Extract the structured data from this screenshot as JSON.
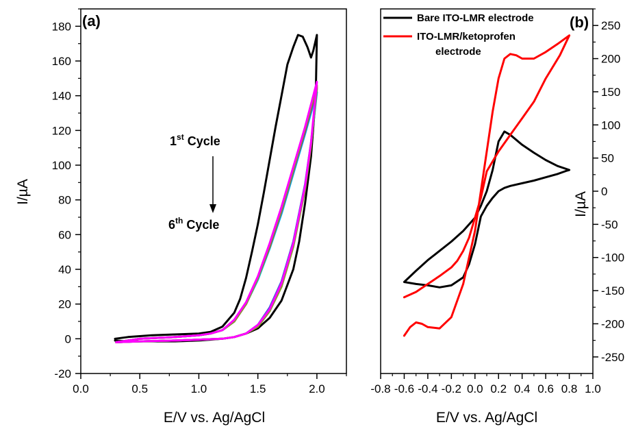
{
  "figure": {
    "panels": [
      {
        "label": "(a)"
      },
      {
        "label": "(b)"
      }
    ]
  },
  "chart_data": [
    {
      "type": "line",
      "panel": "(a)",
      "xlabel": "E/V vs. Ag/AgCl",
      "ylabel": "I/µA",
      "xlim": [
        0.0,
        2.25
      ],
      "ylim": [
        -20,
        190
      ],
      "xticks": [
        0.0,
        0.5,
        1.0,
        1.5,
        2.0
      ],
      "yticks": [
        -20,
        0,
        20,
        40,
        60,
        80,
        100,
        120,
        140,
        160,
        180
      ],
      "xtick_labels": [
        "0.0",
        "0.5",
        "1.0",
        "1.5",
        "2.0"
      ],
      "ytick_labels": [
        "-20",
        "0",
        "20",
        "40",
        "60",
        "80",
        "100",
        "120",
        "140",
        "160",
        "180"
      ],
      "annotation_top": {
        "num": "1",
        "sup": "st",
        "text": " Cycle"
      },
      "annotation_bottom": {
        "num": "6",
        "sup": "th",
        "text": " Cycle"
      },
      "series": [
        {
          "color": "#000000",
          "x": [
            0.29,
            0.4,
            0.6,
            0.8,
            1.0,
            1.1,
            1.2,
            1.3,
            1.35,
            1.4,
            1.45,
            1.5,
            1.55,
            1.6,
            1.65,
            1.7,
            1.75,
            1.8,
            1.84,
            1.88,
            1.92,
            1.95,
            1.97,
            2.0,
            1.99,
            1.95,
            1.9,
            1.85,
            1.8,
            1.7,
            1.6,
            1.5,
            1.4,
            1.3,
            1.2,
            1.1,
            1.0,
            0.8,
            0.6,
            0.4,
            0.29
          ],
          "y": [
            0,
            1,
            2,
            2.5,
            3,
            4,
            7,
            15,
            23,
            35,
            50,
            66,
            84,
            103,
            122,
            140,
            158,
            168,
            175,
            174,
            168,
            162,
            166,
            175,
            140,
            105,
            78,
            56,
            40,
            22,
            12,
            6,
            3,
            1,
            0,
            -0.5,
            -1,
            -1.5,
            -1.5,
            -1.5,
            -1
          ]
        },
        {
          "color": "#00c8e6",
          "x": [
            0.3,
            0.5,
            0.8,
            1.0,
            1.1,
            1.2,
            1.3,
            1.4,
            1.5,
            1.6,
            1.7,
            1.8,
            1.9,
            2.0,
            1.95,
            1.9,
            1.8,
            1.7,
            1.6,
            1.5,
            1.4,
            1.3,
            1.2,
            1.0,
            0.8,
            0.5,
            0.3
          ],
          "y": [
            -2,
            0,
            1,
            2,
            3,
            5,
            10,
            20,
            34,
            52,
            72,
            95,
            118,
            142,
            112,
            88,
            55,
            32,
            17,
            8,
            3,
            1,
            0,
            -0.5,
            -1,
            -1.5,
            -2
          ]
        },
        {
          "color": "#3b5bd6",
          "x": [
            0.3,
            0.5,
            0.8,
            1.0,
            1.1,
            1.2,
            1.3,
            1.4,
            1.5,
            1.6,
            1.7,
            1.8,
            1.9,
            2.0,
            1.95,
            1.9,
            1.8,
            1.7,
            1.6,
            1.5,
            1.4,
            1.3,
            1.2,
            1.0,
            0.8,
            0.5,
            0.3
          ],
          "y": [
            -2,
            0,
            1,
            2,
            3,
            5,
            10,
            20,
            35,
            53,
            73,
            96,
            119,
            144,
            113,
            89,
            56,
            33,
            18,
            8,
            3,
            1,
            0,
            -0.5,
            -1,
            -1.5,
            -2
          ]
        },
        {
          "color": "#a0522d",
          "x": [
            0.3,
            0.5,
            0.8,
            1.0,
            1.1,
            1.2,
            1.3,
            1.4,
            1.5,
            1.6,
            1.7,
            1.8,
            1.9,
            2.0,
            1.95,
            1.9,
            1.8,
            1.7,
            1.6,
            1.5,
            1.4,
            1.3,
            1.2,
            1.0,
            0.8,
            0.5,
            0.3
          ],
          "y": [
            -2,
            0,
            1,
            2,
            3,
            5,
            10,
            20,
            35,
            53,
            74,
            97,
            120,
            145,
            112,
            87,
            54,
            31,
            16,
            7,
            3,
            1,
            0,
            -0.5,
            -1,
            -1.5,
            -2
          ]
        },
        {
          "color": "#8a9a2a",
          "x": [
            0.3,
            0.5,
            0.8,
            1.0,
            1.1,
            1.2,
            1.3,
            1.4,
            1.5,
            1.6,
            1.7,
            1.8,
            1.9,
            2.0,
            1.95,
            1.9,
            1.8,
            1.7,
            1.6,
            1.5,
            1.4,
            1.3,
            1.2,
            1.0,
            0.8,
            0.5,
            0.3
          ],
          "y": [
            -2,
            0,
            1,
            2,
            3,
            5,
            10,
            20,
            35,
            54,
            74,
            97,
            121,
            146,
            111,
            86,
            53,
            30,
            16,
            7,
            3,
            1,
            0,
            -0.5,
            -1,
            -1.5,
            -2
          ]
        },
        {
          "color": "#ff00ff",
          "x": [
            0.3,
            0.5,
            0.8,
            1.0,
            1.1,
            1.2,
            1.3,
            1.4,
            1.5,
            1.6,
            1.7,
            1.8,
            1.9,
            2.0,
            1.95,
            1.9,
            1.8,
            1.7,
            1.6,
            1.5,
            1.4,
            1.3,
            1.2,
            1.0,
            0.8,
            0.5,
            0.3
          ],
          "y": [
            -2,
            0,
            1,
            2,
            3,
            5,
            11,
            21,
            36,
            55,
            76,
            99,
            122,
            148,
            113,
            88,
            55,
            32,
            17,
            8,
            3,
            1,
            0,
            -0.5,
            -1,
            -1.5,
            -2
          ]
        }
      ]
    },
    {
      "type": "line",
      "panel": "(b)",
      "xlabel": "E/V vs. Ag/AgCl",
      "ylabel": "I/µA",
      "xlim": [
        -0.8,
        1.0
      ],
      "ylim": [
        -275,
        275
      ],
      "xticks": [
        -0.8,
        -0.6,
        -0.4,
        -0.2,
        0.0,
        0.2,
        0.4,
        0.6,
        0.8,
        1.0
      ],
      "yticks": [
        -250,
        -200,
        -150,
        -100,
        -50,
        0,
        50,
        100,
        150,
        200,
        250
      ],
      "xtick_labels": [
        "-0.8",
        "-0.6",
        "-0.4",
        "-0.2",
        "0.0",
        "0.2",
        "0.4",
        "0.6",
        "0.8",
        "1.0"
      ],
      "ytick_labels": [
        "-250",
        "-200",
        "-150",
        "-100",
        "-50",
        "0",
        "50",
        "100",
        "150",
        "200",
        "250"
      ],
      "legend": [
        {
          "label": "Bare ITO-LMR electrode",
          "color": "#000000"
        },
        {
          "label": "ITO-LMR/ketoprofen",
          "label2": "electrode",
          "color": "#ff0000"
        }
      ],
      "series": [
        {
          "name": "Bare ITO-LMR electrode",
          "color": "#000000",
          "x": [
            -0.6,
            -0.5,
            -0.4,
            -0.3,
            -0.2,
            -0.1,
            0.0,
            0.05,
            0.1,
            0.15,
            0.2,
            0.25,
            0.3,
            0.4,
            0.5,
            0.6,
            0.7,
            0.8,
            0.78,
            0.7,
            0.6,
            0.5,
            0.4,
            0.3,
            0.25,
            0.2,
            0.15,
            0.1,
            0.05,
            0.0,
            -0.05,
            -0.1,
            -0.2,
            -0.3,
            -0.4,
            -0.5,
            -0.6
          ],
          "y": [
            -137,
            -120,
            -104,
            -90,
            -76,
            -60,
            -40,
            -22,
            0,
            32,
            75,
            90,
            85,
            70,
            58,
            47,
            38,
            32,
            31,
            26,
            21,
            16,
            12,
            8,
            5,
            0,
            -10,
            -22,
            -38,
            -80,
            -110,
            -130,
            -142,
            -145,
            -142,
            -140,
            -137
          ]
        },
        {
          "name": "ITO-LMR/ketoprofen electrode",
          "color": "#ff0000",
          "x": [
            -0.6,
            -0.55,
            -0.5,
            -0.45,
            -0.4,
            -0.3,
            -0.2,
            -0.1,
            0.0,
            0.05,
            0.1,
            0.15,
            0.2,
            0.25,
            0.3,
            0.35,
            0.4,
            0.5,
            0.6,
            0.7,
            0.8,
            0.72,
            0.6,
            0.5,
            0.4,
            0.3,
            0.2,
            0.1,
            0.05,
            0.0,
            -0.05,
            -0.1,
            -0.15,
            -0.2,
            -0.3,
            -0.4,
            -0.5,
            -0.6
          ],
          "y": [
            -218,
            -205,
            -198,
            -200,
            -205,
            -207,
            -190,
            -140,
            -60,
            0,
            60,
            120,
            170,
            200,
            207,
            205,
            200,
            200,
            210,
            222,
            235,
            205,
            170,
            135,
            110,
            85,
            60,
            30,
            -10,
            -40,
            -70,
            -90,
            -105,
            -115,
            -128,
            -140,
            -152,
            -160
          ]
        }
      ]
    }
  ]
}
